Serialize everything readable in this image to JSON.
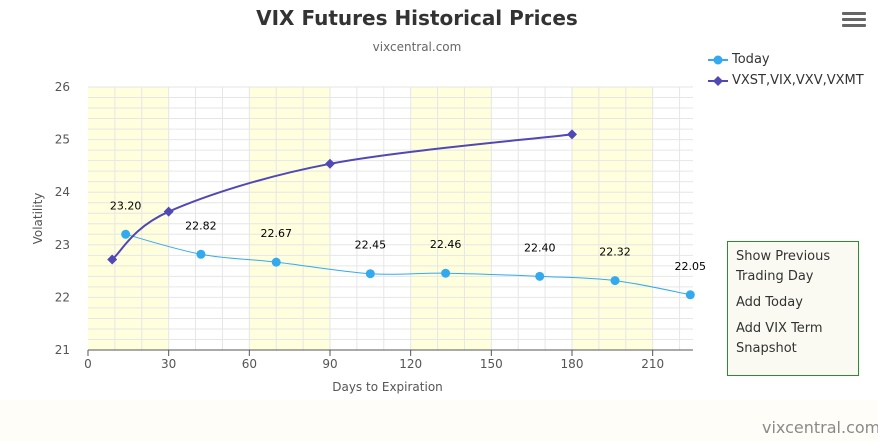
{
  "chart_data": {
    "type": "line",
    "title": "VIX Futures Historical Prices",
    "subtitle": "vixcentral.com",
    "xlabel": "Days to Expiration",
    "ylabel": "Volatility",
    "xlim": [
      0,
      225
    ],
    "ylim": [
      21,
      26
    ],
    "x_ticks": [
      0,
      30,
      60,
      90,
      120,
      150,
      180,
      210
    ],
    "y_ticks": [
      21,
      22,
      23,
      24,
      25,
      26
    ],
    "grid": true,
    "shaded_bands": [
      [
        0,
        30
      ],
      [
        60,
        90
      ],
      [
        120,
        150
      ],
      [
        180,
        210
      ]
    ],
    "legend_position": "top-right",
    "series": [
      {
        "name": "Today",
        "color": "#33aaee",
        "marker": "circle",
        "show_labels": true,
        "points": [
          {
            "x": 14,
            "y": 23.2,
            "label": "23.20"
          },
          {
            "x": 42,
            "y": 22.82,
            "label": "22.82"
          },
          {
            "x": 70,
            "y": 22.67,
            "label": "22.67"
          },
          {
            "x": 105,
            "y": 22.45,
            "label": "22.45"
          },
          {
            "x": 133,
            "y": 22.46,
            "label": "22.46"
          },
          {
            "x": 168,
            "y": 22.4,
            "label": "22.40"
          },
          {
            "x": 196,
            "y": 22.32,
            "label": "22.32"
          },
          {
            "x": 224,
            "y": 22.05,
            "label": "22.05"
          }
        ]
      },
      {
        "name": "VXST,VIX,VXV,VXMT",
        "color": "#5048b4",
        "marker": "diamond",
        "show_labels": false,
        "points": [
          {
            "x": 9,
            "y": 22.72
          },
          {
            "x": 30,
            "y": 23.63
          },
          {
            "x": 90,
            "y": 24.54
          },
          {
            "x": 180,
            "y": 25.1
          }
        ]
      }
    ]
  },
  "menu": {
    "items": [
      "Show Previous Trading Day",
      "Add Today",
      "Add VIX Term Snapshot"
    ]
  },
  "credit": "vixcentral.com",
  "colors": {
    "band": "#ffffdd",
    "grid": "#e6e6e6",
    "menu_border": "#2e8b2e"
  }
}
